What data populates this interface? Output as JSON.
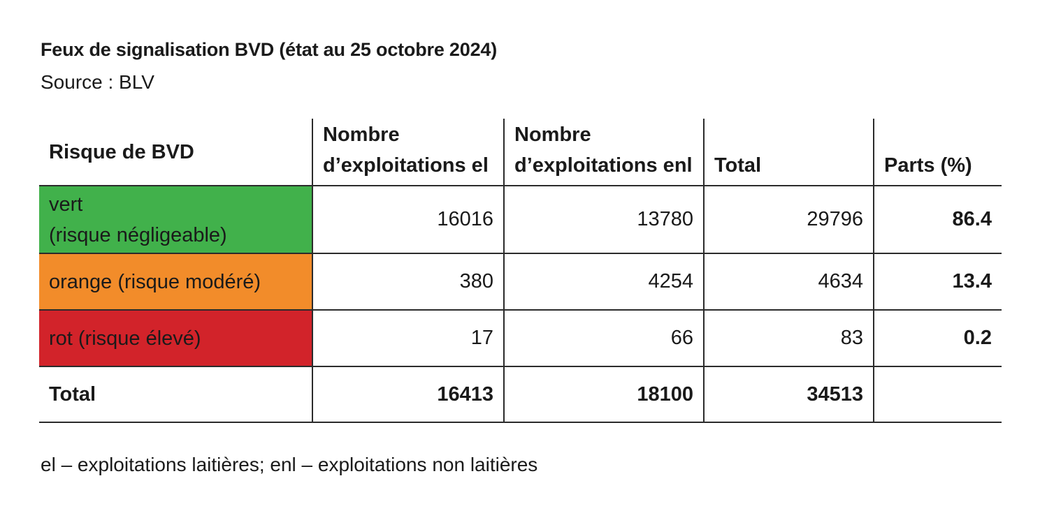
{
  "title": "Feux de signalisation BVD (état au 25 octobre 2024)",
  "source": "Source : BLV",
  "table": {
    "headers": {
      "risk": "Risque de BVD",
      "el_line1": "Nombre",
      "el_line2": "d’exploitations el",
      "enl_line1": "Nombre",
      "enl_line2": "d’exploitations enl",
      "total": "Total",
      "share": "Parts (%)"
    },
    "rows": [
      {
        "label_line1": "vert",
        "label_line2": "(risque négligeable)",
        "color": "#41b14b",
        "el": "16016",
        "enl": "13780",
        "total": "29796",
        "share": "86.4"
      },
      {
        "label_line1": "orange (risque modéré)",
        "color": "#f28c2a",
        "el": "380",
        "enl": "4254",
        "total": "4634",
        "share": "13.4"
      },
      {
        "label_line1": "rot (risque élevé)",
        "color": "#d2232a",
        "el": "17",
        "enl": "66",
        "total": "83",
        "share": "0.2"
      }
    ],
    "total_row": {
      "label": "Total",
      "el": "16413",
      "enl": "18100",
      "total": "34513",
      "share": ""
    }
  },
  "footnote": "el – exploitations laitières; enl – exploitations non laitières"
}
